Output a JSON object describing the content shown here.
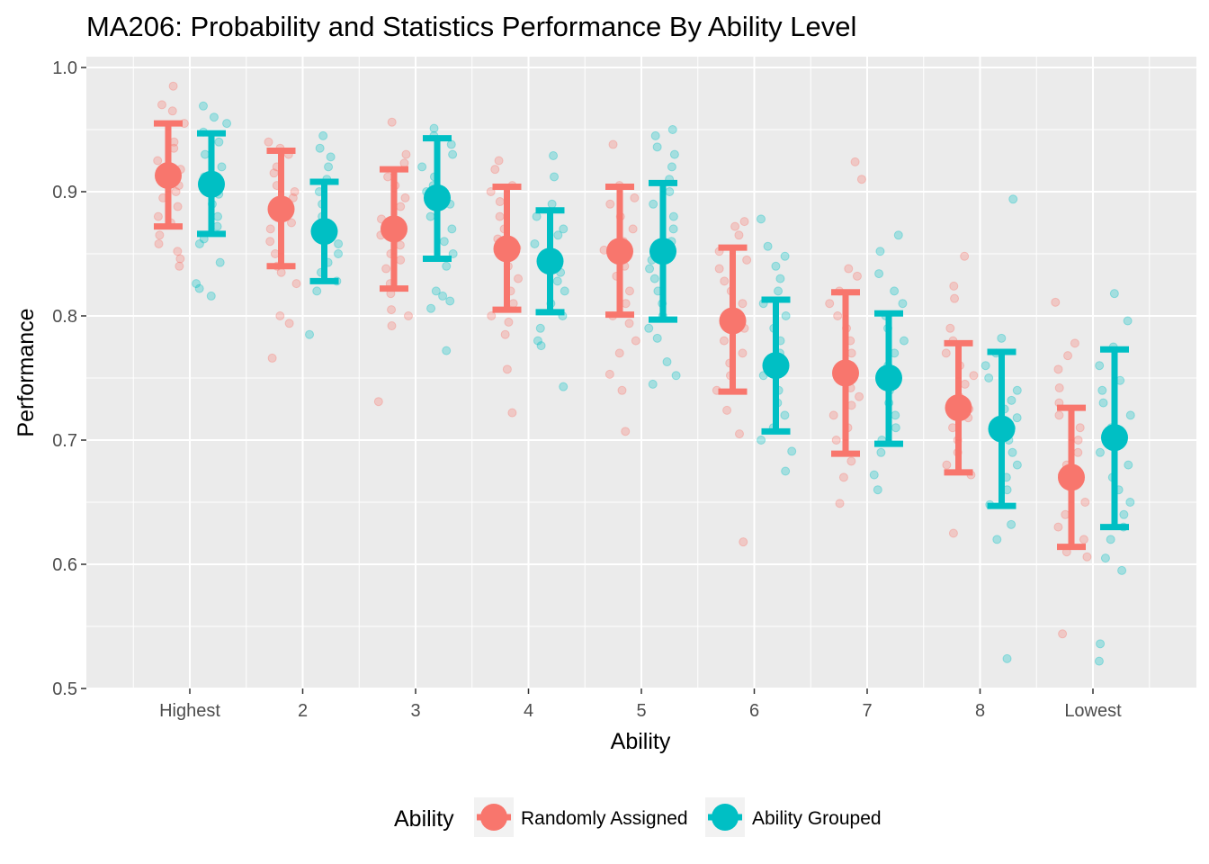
{
  "chart_data": {
    "type": "scatter",
    "title": "MA206: Probability and Statistics Performance By Ability Level",
    "xlabel": "Ability",
    "ylabel": "Performance",
    "ylim": [
      0.5,
      1.0
    ],
    "yticks": [
      "0.5",
      "0.6",
      "0.7",
      "0.8",
      "0.9",
      "1.0"
    ],
    "categories": [
      "Highest",
      "2",
      "3",
      "4",
      "5",
      "6",
      "7",
      "8",
      "Lowest"
    ],
    "grid": true,
    "legend": {
      "title": "Ability",
      "position": "bottom"
    },
    "series": [
      {
        "name": "Randomly Assigned",
        "color": "#F8766D",
        "mean": [
          0.913,
          0.886,
          0.87,
          0.854,
          0.852,
          0.796,
          0.754,
          0.726,
          0.67
        ],
        "lower": [
          0.872,
          0.84,
          0.822,
          0.805,
          0.801,
          0.739,
          0.689,
          0.674,
          0.614
        ],
        "upper": [
          0.955,
          0.933,
          0.918,
          0.904,
          0.904,
          0.855,
          0.819,
          0.778,
          0.726
        ],
        "points": [
          [
            0.985,
            0.97,
            0.965,
            0.955,
            0.94,
            0.935,
            0.925,
            0.918,
            0.912,
            0.905,
            0.9,
            0.895,
            0.888,
            0.88,
            0.875,
            0.865,
            0.858,
            0.852,
            0.846,
            0.84
          ],
          [
            0.94,
            0.935,
            0.93,
            0.92,
            0.915,
            0.905,
            0.9,
            0.895,
            0.89,
            0.885,
            0.875,
            0.87,
            0.86,
            0.85,
            0.84,
            0.835,
            0.826,
            0.8,
            0.794,
            0.766
          ],
          [
            0.956,
            0.93,
            0.923,
            0.912,
            0.905,
            0.895,
            0.888,
            0.878,
            0.87,
            0.865,
            0.857,
            0.85,
            0.845,
            0.838,
            0.826,
            0.818,
            0.805,
            0.8,
            0.792,
            0.731
          ],
          [
            0.925,
            0.918,
            0.905,
            0.9,
            0.892,
            0.88,
            0.87,
            0.862,
            0.855,
            0.848,
            0.84,
            0.83,
            0.82,
            0.81,
            0.8,
            0.795,
            0.785,
            0.757,
            0.722
          ],
          [
            0.938,
            0.905,
            0.895,
            0.89,
            0.88,
            0.87,
            0.86,
            0.853,
            0.848,
            0.84,
            0.832,
            0.82,
            0.81,
            0.8,
            0.794,
            0.78,
            0.77,
            0.753,
            0.74,
            0.707
          ],
          [
            0.876,
            0.872,
            0.865,
            0.852,
            0.845,
            0.838,
            0.828,
            0.82,
            0.81,
            0.8,
            0.79,
            0.78,
            0.77,
            0.762,
            0.752,
            0.74,
            0.724,
            0.705,
            0.618
          ],
          [
            0.924,
            0.91,
            0.838,
            0.832,
            0.82,
            0.81,
            0.8,
            0.79,
            0.78,
            0.77,
            0.76,
            0.75,
            0.742,
            0.735,
            0.728,
            0.72,
            0.71,
            0.7,
            0.683,
            0.67,
            0.649
          ],
          [
            0.848,
            0.824,
            0.814,
            0.79,
            0.78,
            0.77,
            0.76,
            0.752,
            0.745,
            0.735,
            0.725,
            0.718,
            0.71,
            0.7,
            0.69,
            0.68,
            0.672,
            0.625
          ],
          [
            0.811,
            0.778,
            0.768,
            0.757,
            0.742,
            0.73,
            0.72,
            0.71,
            0.7,
            0.69,
            0.68,
            0.672,
            0.662,
            0.65,
            0.64,
            0.63,
            0.62,
            0.61,
            0.606,
            0.544
          ]
        ]
      },
      {
        "name": "Ability Grouped",
        "color": "#00BFC4",
        "mean": [
          0.906,
          0.868,
          0.895,
          0.844,
          0.852,
          0.76,
          0.75,
          0.709,
          0.702
        ],
        "lower": [
          0.866,
          0.828,
          0.846,
          0.803,
          0.797,
          0.707,
          0.697,
          0.647,
          0.63
        ],
        "upper": [
          0.947,
          0.908,
          0.943,
          0.885,
          0.907,
          0.813,
          0.802,
          0.771,
          0.773
        ],
        "points": [
          [
            0.969,
            0.96,
            0.955,
            0.948,
            0.94,
            0.93,
            0.92,
            0.912,
            0.905,
            0.898,
            0.89,
            0.88,
            0.872,
            0.862,
            0.858,
            0.843,
            0.826,
            0.822,
            0.816
          ],
          [
            0.945,
            0.935,
            0.928,
            0.92,
            0.91,
            0.9,
            0.89,
            0.88,
            0.872,
            0.865,
            0.858,
            0.85,
            0.843,
            0.835,
            0.828,
            0.82,
            0.785
          ],
          [
            0.951,
            0.945,
            0.938,
            0.93,
            0.92,
            0.912,
            0.905,
            0.9,
            0.89,
            0.88,
            0.87,
            0.86,
            0.85,
            0.84,
            0.82,
            0.816,
            0.812,
            0.806,
            0.772
          ],
          [
            0.929,
            0.912,
            0.89,
            0.88,
            0.87,
            0.865,
            0.858,
            0.85,
            0.842,
            0.835,
            0.828,
            0.82,
            0.81,
            0.8,
            0.79,
            0.78,
            0.776,
            0.743
          ],
          [
            0.95,
            0.945,
            0.936,
            0.93,
            0.92,
            0.91,
            0.9,
            0.89,
            0.88,
            0.87,
            0.86,
            0.852,
            0.845,
            0.838,
            0.83,
            0.82,
            0.81,
            0.8,
            0.79,
            0.782,
            0.763,
            0.752,
            0.745
          ],
          [
            0.878,
            0.856,
            0.848,
            0.84,
            0.83,
            0.82,
            0.81,
            0.8,
            0.79,
            0.78,
            0.77,
            0.762,
            0.752,
            0.74,
            0.73,
            0.72,
            0.71,
            0.7,
            0.691,
            0.675
          ],
          [
            0.865,
            0.852,
            0.834,
            0.82,
            0.81,
            0.8,
            0.79,
            0.78,
            0.77,
            0.76,
            0.75,
            0.74,
            0.73,
            0.72,
            0.71,
            0.7,
            0.69,
            0.672,
            0.66
          ],
          [
            0.894,
            0.782,
            0.77,
            0.76,
            0.75,
            0.74,
            0.732,
            0.725,
            0.718,
            0.71,
            0.7,
            0.69,
            0.68,
            0.67,
            0.66,
            0.648,
            0.632,
            0.62,
            0.524
          ],
          [
            0.818,
            0.796,
            0.775,
            0.76,
            0.748,
            0.74,
            0.73,
            0.72,
            0.71,
            0.7,
            0.69,
            0.68,
            0.67,
            0.66,
            0.65,
            0.64,
            0.63,
            0.62,
            0.605,
            0.595,
            0.536,
            0.522
          ]
        ]
      }
    ]
  }
}
